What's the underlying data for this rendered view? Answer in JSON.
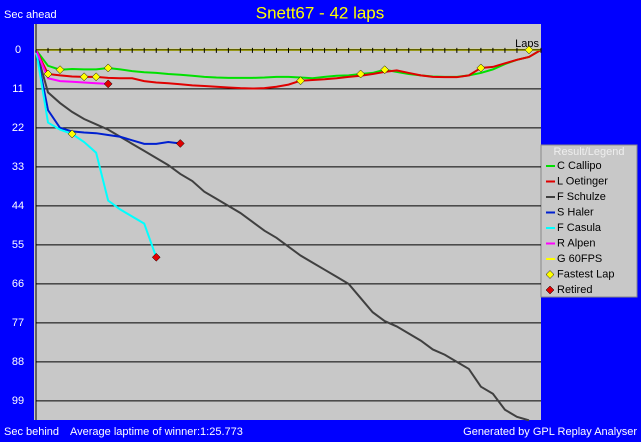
{
  "chart_data": {
    "type": "line",
    "title": "Snett67 - 42 laps",
    "y_label_top": "Sec ahead",
    "y_label_bottom": "Sec behind",
    "x_label": "Laps",
    "footer_left": "Average laptime of winner:1:25.773",
    "footer_right": "Generated by GPL Replay Analyser",
    "legend_title": "Result/Legend",
    "fastest_lap_label": "Fastest Lap",
    "retired_label": "Retired",
    "fastest_color": "#ffff00",
    "retired_color": "#e00000",
    "xlim": [
      0,
      42
    ],
    "ylim": [
      -7.3,
      104.4
    ],
    "y_reversed": true,
    "grid": true,
    "xticks": [
      0,
      1,
      2,
      3,
      4,
      5,
      6,
      7,
      8,
      9,
      10,
      11,
      12,
      13,
      14,
      15,
      16,
      17,
      18,
      19,
      20,
      21,
      22,
      23,
      24,
      25,
      26,
      27,
      28,
      29,
      30,
      31,
      32,
      33,
      34,
      35,
      36,
      37,
      38,
      39,
      40,
      41,
      42
    ],
    "yticks": [
      0,
      11,
      22,
      33,
      44,
      55,
      66,
      77,
      88,
      99
    ],
    "series": [
      {
        "name": "C Callipo",
        "color": "#00e000",
        "values": [
          0,
          4.5,
          5.6,
          5.4,
          5.5,
          5.5,
          5.1,
          5.5,
          6,
          6.3,
          6.5,
          6.8,
          7,
          7.3,
          7.6,
          7.8,
          7.9,
          7.9,
          7.9,
          7.8,
          7.6,
          7.6,
          7.8,
          8,
          7.6,
          7.3,
          7.2,
          6.8,
          6.5,
          5.6,
          6.2,
          6.8,
          7.2,
          7.5,
          7.6,
          7.6,
          7.2,
          6.5,
          5.5,
          4,
          2.8,
          2,
          0
        ],
        "fastest_laps": [
          2,
          6,
          27,
          29
        ]
      },
      {
        "name": "L Oetinger",
        "color": "#e00000",
        "values": [
          0,
          6.8,
          7.2,
          7.5,
          7.6,
          7.6,
          7.9,
          8,
          8,
          8.8,
          9.2,
          9.4,
          9.7,
          10,
          10.2,
          10.4,
          10.6,
          10.8,
          10.9,
          10.8,
          10.4,
          9.8,
          8.7,
          8.5,
          8.3,
          8,
          7.6,
          7.3,
          6.8,
          6.2,
          5.8,
          6.5,
          7.2,
          7.6,
          7.7,
          7.7,
          7.2,
          5.1,
          4.8,
          3.8,
          2.8,
          2,
          0
        ],
        "fastest_laps": [
          1,
          4,
          5,
          22,
          37
        ]
      },
      {
        "name": "F Schulze",
        "color": "#404040",
        "values": [
          0,
          12,
          15,
          17.5,
          19.5,
          21,
          22.5,
          24.5,
          26.5,
          28.5,
          30.5,
          32.5,
          35,
          37,
          40,
          42,
          44,
          46,
          48.5,
          51,
          53,
          55.5,
          58,
          60,
          62,
          64,
          66,
          70,
          74,
          76.5,
          78,
          80,
          82,
          84.5,
          86,
          88,
          90,
          95,
          97,
          101.5,
          103.5,
          104.5
        ],
        "fastest_laps": []
      },
      {
        "name": "S Haler",
        "color": "#0020d0",
        "values": [
          0,
          17,
          22,
          23,
          23.3,
          23.5,
          24,
          24.5,
          25.5,
          26.5,
          26.5,
          26,
          26.4
        ],
        "fastest_laps": [],
        "retired": true
      },
      {
        "name": "F Casula",
        "color": "#00ffff",
        "values": [
          0,
          20.5,
          22.5,
          23.7,
          26,
          29,
          42.5,
          45,
          47,
          49,
          58.5
        ],
        "fastest_laps": [
          3
        ],
        "retired": true
      },
      {
        "name": "R Alpen",
        "color": "#ff00ff",
        "values": [
          0,
          8,
          8.8,
          9,
          9.2,
          9.4,
          9.6
        ],
        "fastest_laps": [],
        "retired": true
      },
      {
        "name": "G 60FPS",
        "color": "#ffff00",
        "values": [
          0,
          0,
          0,
          0,
          0,
          0,
          0,
          0,
          0,
          0,
          0,
          0,
          0,
          0,
          0,
          0,
          0,
          0,
          0,
          0,
          0,
          0,
          0,
          0,
          0,
          0,
          0,
          0,
          0,
          0,
          0,
          0,
          0,
          0,
          0,
          0,
          0,
          0,
          0,
          0,
          0,
          0,
          0
        ],
        "fastest_laps": [
          41
        ]
      }
    ]
  }
}
